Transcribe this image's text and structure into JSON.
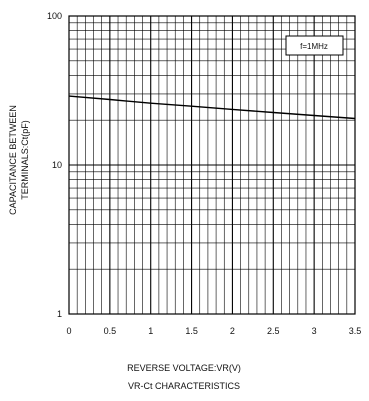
{
  "chart_data": {
    "type": "line",
    "caption": "VR-Ct CHARACTERISTICS",
    "xlabel": "REVERSE VOLTAGE:VR(V)",
    "ylabel_line1": "CAPACITANCE BETWEEN",
    "ylabel_line2": "TERMINALS:Ct(pF)",
    "annotation": "f=1MHz",
    "x_scale": "linear",
    "y_scale": "log",
    "xlim": [
      0,
      3.5
    ],
    "ylim": [
      1,
      100
    ],
    "grid": true,
    "x_ticks": [
      "0",
      "0.5",
      "1",
      "1.5",
      "2",
      "2.5",
      "3",
      "3.5"
    ],
    "y_ticks": [
      "1",
      "10",
      "100"
    ],
    "series": [
      {
        "x": [
          0,
          0.5,
          1,
          1.5,
          2,
          2.5,
          3,
          3.5
        ],
        "y": [
          29,
          27.5,
          26,
          24.8,
          23.6,
          22.5,
          21.5,
          20.5
        ]
      }
    ]
  }
}
